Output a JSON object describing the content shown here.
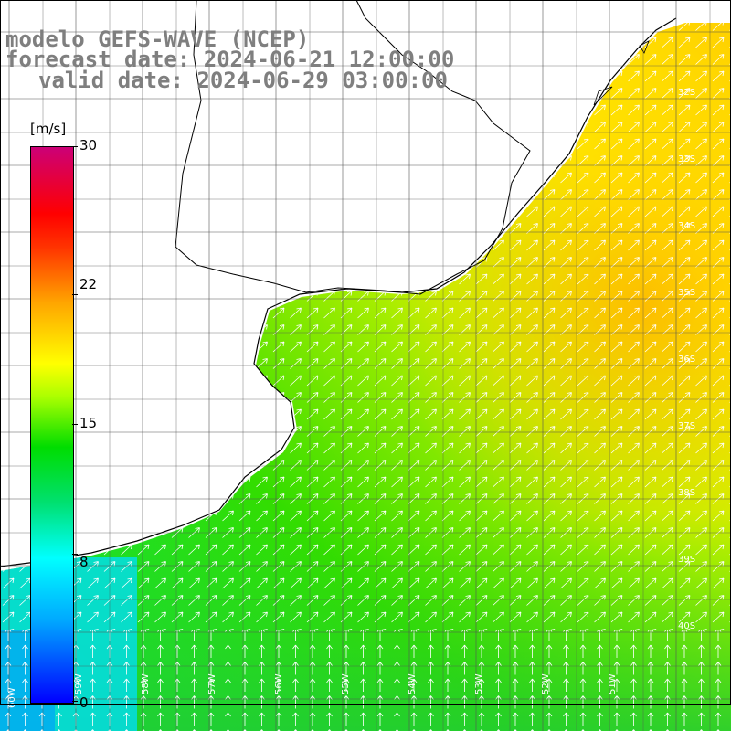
{
  "title": {
    "line1": "modelo GEFS-WAVE (NCEP)",
    "line2": "forecast date: 2024-06-21 12:00:00",
    "line3": "valid date: 2024-06-29 03:00:00"
  },
  "colorbar": {
    "unit": "[m/s]",
    "min": 0,
    "max": 30,
    "ticks": [
      "0",
      "8",
      "15",
      "22",
      "30"
    ]
  },
  "map": {
    "latitude_labels": [
      "32S",
      "33S",
      "34S",
      "35S",
      "36S",
      "37S",
      "38S",
      "39S",
      "40S"
    ],
    "longitude_labels": [
      "60W",
      "59W",
      "58W",
      "57W",
      "56W",
      "55W",
      "54W",
      "53W",
      "52W",
      "51W"
    ],
    "ocean_colors": {
      "low": "#00ffff",
      "mid": "#33dd00",
      "high": "#ffff00",
      "peak": "#ffb000"
    },
    "arrow_color": "#ffffff",
    "grid_color": "#555555",
    "coast_color": "#000000"
  }
}
